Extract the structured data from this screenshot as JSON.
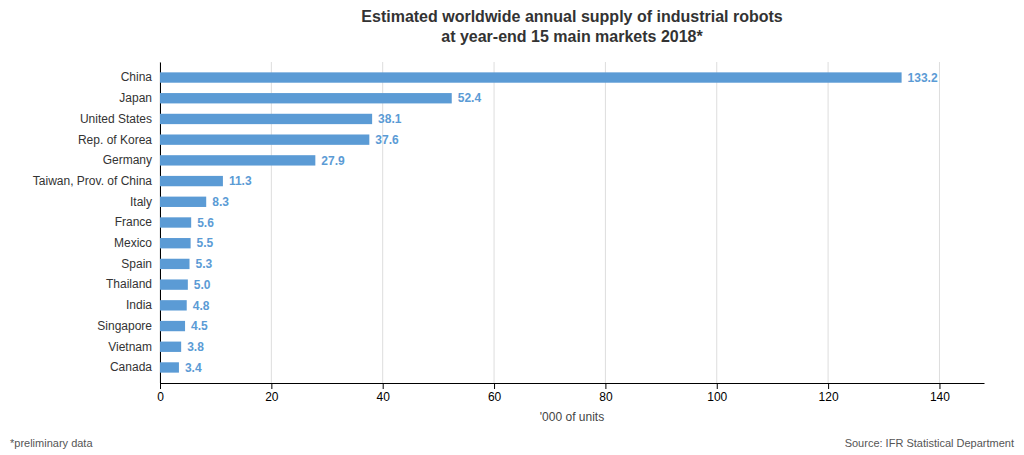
{
  "chart_data": {
    "type": "bar",
    "orientation": "horizontal",
    "title": "Estimated worldwide annual supply of industrial robots",
    "subtitle": "at year-end 15 main markets 2018*",
    "categories": [
      "China",
      "Japan",
      "United States",
      "Rep. of Korea",
      "Germany",
      "Taiwan, Prov. of China",
      "Italy",
      "France",
      "Mexico",
      "Spain",
      "Thailand",
      "India",
      "Singapore",
      "Vietnam",
      "Canada"
    ],
    "values": [
      133.2,
      52.4,
      38.1,
      37.6,
      27.9,
      11.3,
      8.3,
      5.6,
      5.5,
      5.3,
      5.0,
      4.8,
      4.5,
      3.8,
      3.4
    ],
    "value_labels": [
      "133.2",
      "52.4",
      "38.1",
      "37.6",
      "27.9",
      "11.3",
      "8.3",
      "5.6",
      "5.5",
      "5.3",
      "5.0",
      "4.8",
      "4.5",
      "3.8",
      "3.4"
    ],
    "color": "#5b9bd5",
    "xlabel": "'000 of units",
    "xlim": [
      0,
      148
    ],
    "xticks": [
      0,
      20,
      40,
      60,
      80,
      100,
      120,
      140
    ],
    "grid": true,
    "data_labels": true,
    "annotations": [
      "*preliminary data",
      "Source: IFR Statistical Department"
    ]
  }
}
